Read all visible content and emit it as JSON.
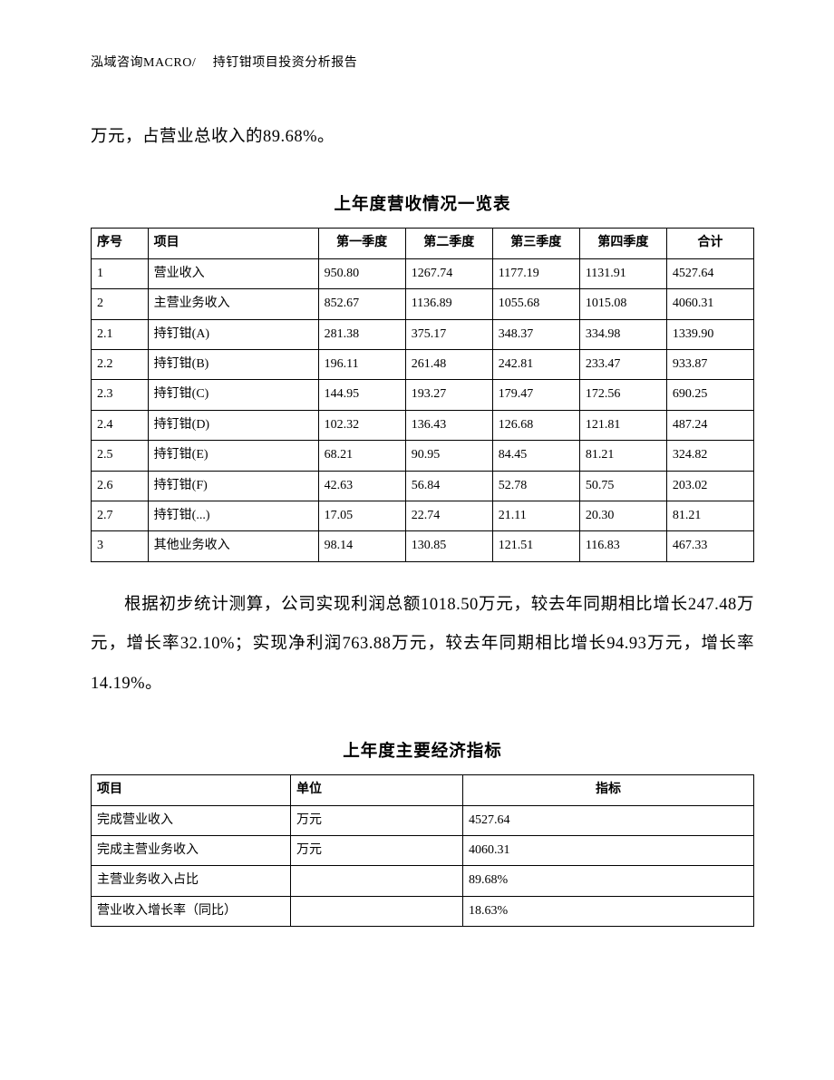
{
  "header": "泓域咨询MACRO/　 持钉钳项目投资分析报告",
  "intro_line": "万元，占营业总收入的89.68%。",
  "table1": {
    "title": "上年度营收情况一览表",
    "columns": [
      "序号",
      "项目",
      "第一季度",
      "第二季度",
      "第三季度",
      "第四季度",
      "合计"
    ],
    "rows": [
      [
        "1",
        "营业收入",
        "950.80",
        "1267.74",
        "1177.19",
        "1131.91",
        "4527.64"
      ],
      [
        "2",
        "主营业务收入",
        "852.67",
        "1136.89",
        "1055.68",
        "1015.08",
        "4060.31"
      ],
      [
        "2.1",
        "持钉钳(A)",
        "281.38",
        "375.17",
        "348.37",
        "334.98",
        "1339.90"
      ],
      [
        "2.2",
        "持钉钳(B)",
        "196.11",
        "261.48",
        "242.81",
        "233.47",
        "933.87"
      ],
      [
        "2.3",
        "持钉钳(C)",
        "144.95",
        "193.27",
        "179.47",
        "172.56",
        "690.25"
      ],
      [
        "2.4",
        "持钉钳(D)",
        "102.32",
        "136.43",
        "126.68",
        "121.81",
        "487.24"
      ],
      [
        "2.5",
        "持钉钳(E)",
        "68.21",
        "90.95",
        "84.45",
        "81.21",
        "324.82"
      ],
      [
        "2.6",
        "持钉钳(F)",
        "42.63",
        "56.84",
        "52.78",
        "50.75",
        "203.02"
      ],
      [
        "2.7",
        "持钉钳(...)",
        "17.05",
        "22.74",
        "21.11",
        "20.30",
        "81.21"
      ],
      [
        "3",
        "其他业务收入",
        "98.14",
        "130.85",
        "121.51",
        "116.83",
        "467.33"
      ]
    ]
  },
  "paragraph": "根据初步统计测算，公司实现利润总额1018.50万元，较去年同期相比增长247.48万元，增长率32.10%；实现净利润763.88万元，较去年同期相比增长94.93万元，增长率14.19%。",
  "table2": {
    "title": "上年度主要经济指标",
    "columns": [
      "项目",
      "单位",
      "指标"
    ],
    "rows": [
      [
        "完成营业收入",
        "万元",
        "4527.64"
      ],
      [
        "完成主营业务收入",
        "万元",
        "4060.31"
      ],
      [
        "主营业务收入占比",
        "",
        "89.68%"
      ],
      [
        "营业收入增长率（同比）",
        "",
        "18.63%"
      ]
    ]
  }
}
